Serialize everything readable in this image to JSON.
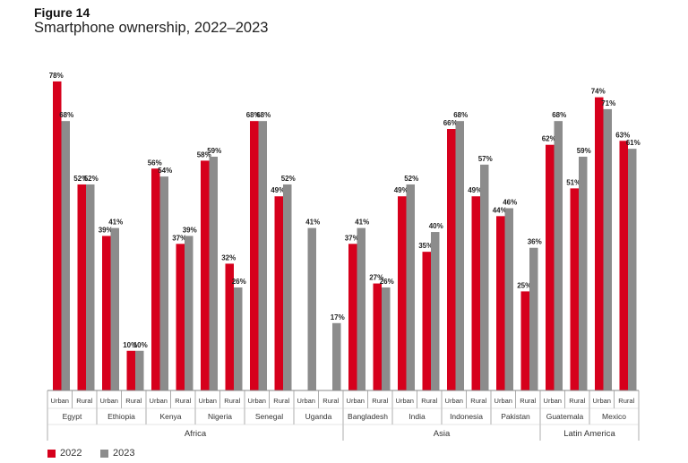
{
  "figure_label": "Figure 14",
  "title": "Smartphone ownership, 2022–2023",
  "colors": {
    "2022": "#d6001c",
    "2023": "#8c8c8c"
  },
  "chart_data": {
    "type": "bar",
    "title": "Smartphone ownership, 2022–2023",
    "ylim": [
      0,
      80
    ],
    "legend_position": "bottom-left",
    "series": [
      {
        "name": "2022",
        "values": [
          78,
          52,
          39,
          10,
          56,
          37,
          58,
          32,
          68,
          49,
          null,
          null,
          37,
          27,
          49,
          35,
          66,
          49,
          44,
          25,
          62,
          51,
          74,
          63
        ]
      },
      {
        "name": "2023",
        "values": [
          68,
          52,
          41,
          10,
          54,
          39,
          59,
          26,
          68,
          52,
          41,
          17,
          41,
          26,
          52,
          40,
          68,
          57,
          46,
          36,
          68,
          59,
          71,
          61
        ]
      }
    ],
    "labels_2022": [
      "78%",
      "52%",
      "39%",
      "10%",
      "56%",
      "37%",
      "58%",
      "32%",
      "68%",
      "49%",
      "",
      "",
      "37%",
      "27%",
      "49%",
      "35%",
      "66%",
      "49%",
      "44%",
      "25%",
      "62%",
      "51%",
      "74%",
      "63%"
    ],
    "labels_2023": [
      "68%",
      "52%",
      "41%",
      "10%",
      "54%",
      "39%",
      "59%",
      "26%",
      "68%",
      "52%",
      "41%",
      "17%",
      "41%",
      "26%",
      "52%",
      "40%",
      "68%",
      "57%",
      "46%",
      "36%",
      "68%",
      "59%",
      "71%",
      "61%"
    ],
    "countries": [
      "Egypt",
      "Ethiopia",
      "Kenya",
      "Nigeria",
      "Senegal",
      "Uganda",
      "Bangladesh",
      "India",
      "Indonesia",
      "Pakistan",
      "Guatemala",
      "Mexico"
    ],
    "sub_labels": [
      "Urban",
      "Rural"
    ],
    "regions": [
      {
        "name": "Africa",
        "countries": 6
      },
      {
        "name": "Asia",
        "countries": 4
      },
      {
        "name": "Latin America",
        "countries": 2
      }
    ]
  }
}
